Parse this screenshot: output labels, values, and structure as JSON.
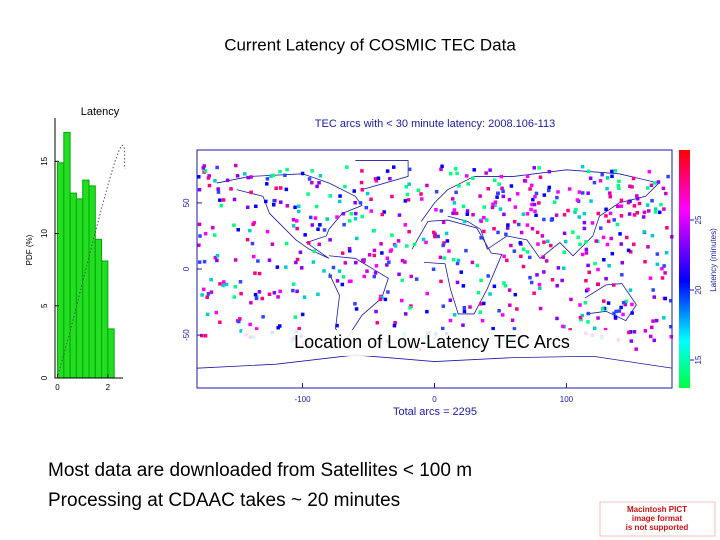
{
  "title": "Current Latency of COSMIC TEC Data",
  "histogram": {
    "type": "histogram",
    "title": "Latency",
    "ylabel": "PDF (%)",
    "bins": [
      0,
      0.25,
      0.5,
      0.75,
      1.0,
      1.25,
      1.5,
      1.75,
      2.0,
      2.25
    ],
    "values": [
      14.9,
      17.0,
      12.8,
      12.4,
      13.7,
      13.3,
      9.6,
      8.1,
      3.4
    ],
    "color": "#22dd22",
    "xlim": [
      -0.1,
      2.6
    ],
    "xticks": [
      0,
      2
    ],
    "ylim": [
      0,
      18
    ],
    "yticks": [
      0,
      5,
      10,
      15
    ]
  },
  "map": {
    "title": "TEC arcs with < 30 minute latency: 2008.106-113",
    "xlabel": "Total arcs = 2295",
    "overlay": "Location of Low-Latency TEC Arcs",
    "xlim": [
      -180,
      180
    ],
    "ylim": [
      -90,
      90
    ],
    "xticks": [
      -100,
      0,
      100
    ],
    "yticks": [
      -50,
      0,
      50
    ],
    "colorbar": {
      "label": "Latency (minutes)",
      "lim": [
        13,
        30
      ],
      "ticks": [
        15,
        20,
        25
      ]
    }
  },
  "notes": [
    "Most data are downloaded from Satellites < 100 m",
    "Processing at CDAAC takes ~ 20 minutes"
  ],
  "pict_notice": [
    "Macintosh PICT",
    "image format",
    "is not supported"
  ]
}
